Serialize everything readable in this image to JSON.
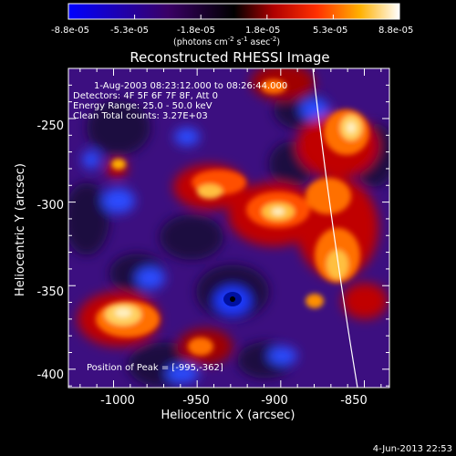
{
  "colorbar": {
    "tick_labels": [
      "-8.8e-05",
      "-5.3e-05",
      "-1.8e-05",
      "1.8e-05",
      "5.3e-05",
      "8.8e-05"
    ],
    "unit_label": "(photons cm",
    "unit_exp1": "-2",
    "unit_mid": " s",
    "unit_exp2": "-1",
    "unit_tail": " asec",
    "unit_exp3": "-2",
    "unit_close": ")"
  },
  "plot": {
    "title": "Reconstructed RHESSI Image",
    "xlabel": "Heliocentric X (arcsec)",
    "ylabel": "Heliocentric Y (arcsec)",
    "x_ticks": [
      "-1000",
      "-950",
      "-900",
      "-850"
    ],
    "y_ticks": [
      "-250",
      "-300",
      "-350",
      "-400"
    ],
    "annotations": {
      "time_range": "1-Aug-2003 08:23:12.000 to 08:26:44.000",
      "detectors": "Detectors: 4F 5F 6F 7F 8F, Att 0",
      "energy": "Energy Range: 25.0 - 50.0 keV",
      "clean": "Clean    Total counts: 3.27E+03",
      "peak": "Position of Peak = [-995,-362]"
    }
  },
  "footer": {
    "timestamp": "4-Jun-2013 22:53"
  },
  "colors": {
    "background": "#000000",
    "text": "#ffffff",
    "limb_line": "#ffffff"
  },
  "chart_data": {
    "type": "heatmap",
    "title": "Reconstructed RHESSI Image",
    "xlabel": "Heliocentric X (arcsec)",
    "ylabel": "Heliocentric Y (arcsec)",
    "xlim": [
      -1027,
      -835
    ],
    "ylim": [
      -411,
      -220
    ],
    "colorbar_range": [
      -8.8e-05,
      8.8e-05
    ],
    "colormap": "blue-purple-red-orange-yellow-white",
    "peak_position": [
      -995,
      -362
    ],
    "solar_limb": true
  }
}
